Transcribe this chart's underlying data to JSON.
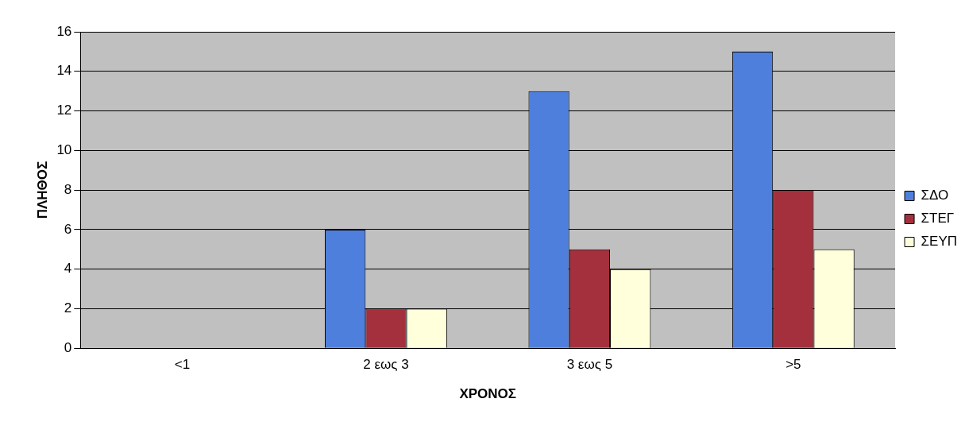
{
  "chart_data": {
    "type": "bar",
    "xlabel": "ΧΡΟΝΟΣ",
    "ylabel": "ΠΛΗΘΟΣ",
    "categories": [
      "<1",
      "2 εως 3",
      "3 εως 5",
      ">5"
    ],
    "series": [
      {
        "name": "ΣΔΟ",
        "color": "#4f7fdc",
        "values": [
          0,
          6,
          13,
          15
        ]
      },
      {
        "name": "ΣΤΕΓ",
        "color": "#a3303c",
        "values": [
          0,
          2,
          5,
          8
        ]
      },
      {
        "name": "ΣΕΥΠ",
        "color": "#ffffdc",
        "values": [
          0,
          2,
          4,
          5
        ]
      }
    ],
    "ylim": [
      0,
      16
    ],
    "yticks": [
      0,
      2,
      4,
      6,
      8,
      10,
      12,
      14,
      16
    ],
    "grid": "y",
    "legend": "right"
  }
}
